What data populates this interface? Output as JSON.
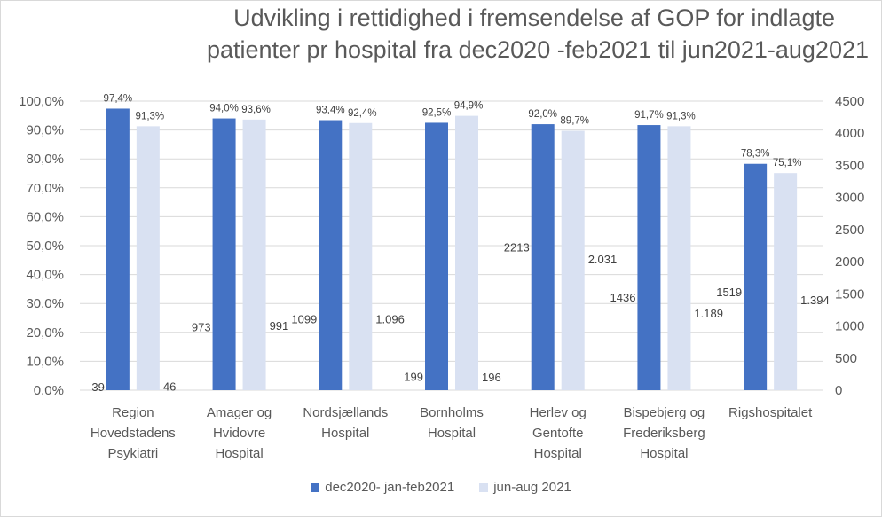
{
  "chart_data": {
    "type": "bar",
    "title_line1": "Udvikling i rettidighed i fremsendelse  af GOP for indlagte",
    "title_line2": "patienter  pr hospital fra dec2020 -feb2021 til  jun2021-aug2021",
    "categories": [
      [
        "Region",
        "Hovedstadens",
        "Psykiatri"
      ],
      [
        "Amager og",
        "Hvidovre",
        "Hospital"
      ],
      [
        "Nordsjællands",
        "Hospital"
      ],
      [
        "Bornholms",
        "Hospital"
      ],
      [
        "Herlev og",
        "Gentofte",
        "Hospital"
      ],
      [
        "Bispebjerg og",
        "Frederiksberg",
        "Hospital"
      ],
      [
        "Rigshospitalet"
      ]
    ],
    "series": [
      {
        "name": "dec2020- jan-feb2021",
        "color": "#4472c4",
        "values": [
          97.4,
          94.0,
          93.4,
          92.5,
          92.0,
          91.7,
          78.3
        ],
        "value_labels": [
          "97,4%",
          "94,0%",
          "93,4%",
          "92,5%",
          "92,0%",
          "91,7%",
          "78,3%"
        ],
        "count_values": [
          39,
          973,
          1099,
          199,
          2213,
          1436,
          1519
        ],
        "count_labels": [
          "39",
          "973",
          "1099",
          "199",
          "2213",
          "1436",
          "1519"
        ]
      },
      {
        "name": "jun-aug 2021",
        "color": "#d9e1f2",
        "values": [
          91.3,
          93.6,
          92.4,
          94.9,
          89.7,
          91.3,
          75.1
        ],
        "value_labels": [
          "91,3%",
          "93,6%",
          "92,4%",
          "94,9%",
          "89,7%",
          "91,3%",
          "75,1%"
        ],
        "count_values": [
          46,
          991,
          1096,
          196,
          2031,
          1189,
          1394
        ],
        "count_labels": [
          "46",
          "991",
          "1.096",
          "196",
          "2.031",
          "1.189",
          "1.394"
        ]
      }
    ],
    "y_left": {
      "min": 0,
      "max": 100,
      "ticks": [
        "0,0%",
        "10,0%",
        "20,0%",
        "30,0%",
        "40,0%",
        "50,0%",
        "60,0%",
        "70,0%",
        "80,0%",
        "90,0%",
        "100,0%"
      ]
    },
    "y_right": {
      "min": 0,
      "max": 4500,
      "ticks": [
        "0",
        "500",
        "1000",
        "1500",
        "2000",
        "2500",
        "3000",
        "3500",
        "4000",
        "4500"
      ]
    },
    "grid": true,
    "legend_position": "bottom"
  }
}
